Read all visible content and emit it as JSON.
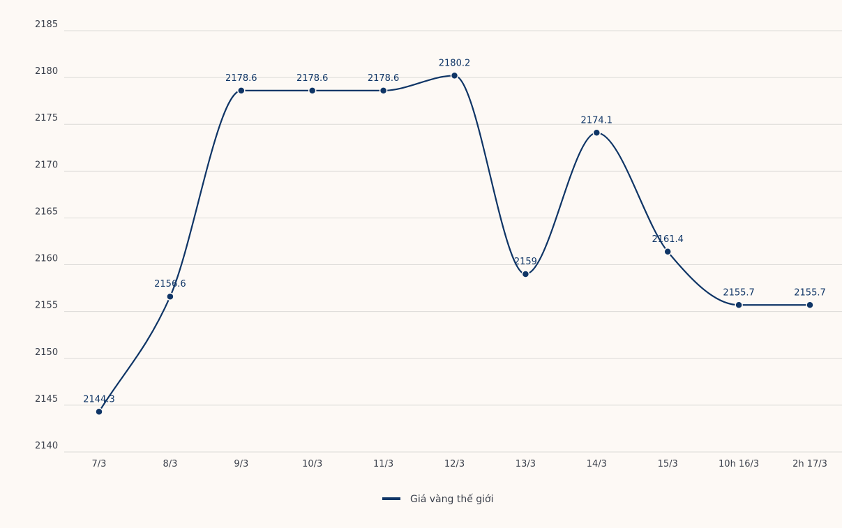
{
  "chart_data": {
    "type": "line",
    "categories": [
      "7/3",
      "8/3",
      "9/3",
      "10/3",
      "11/3",
      "12/3",
      "13/3",
      "14/3",
      "15/3",
      "10h 16/3",
      "2h 17/3"
    ],
    "series": [
      {
        "name": "Giá vàng thế giới",
        "values": [
          2144.3,
          2156.6,
          2178.6,
          2178.6,
          2178.6,
          2180.2,
          2159,
          2174.1,
          2161.4,
          2155.7,
          2155.7
        ],
        "labels": [
          "2144.3",
          "2156.6",
          "2178.6",
          "2178.6",
          "2178.6",
          "2180.2",
          "2159",
          "2174.1",
          "2161.4",
          "2155.7",
          "2155.7"
        ],
        "color": "#0f3566"
      }
    ],
    "yticks": [
      "2140",
      "2145",
      "2150",
      "2155",
      "2160",
      "2165",
      "2170",
      "2175",
      "2180",
      "2185"
    ],
    "ylim": [
      2140,
      2185
    ],
    "grid": true,
    "legend_position": "bottom",
    "title": "",
    "xlabel": "",
    "ylabel": ""
  },
  "colors": {
    "background": "#fdf9f5",
    "grid": "#dcdad7",
    "line": "#0f3566"
  }
}
